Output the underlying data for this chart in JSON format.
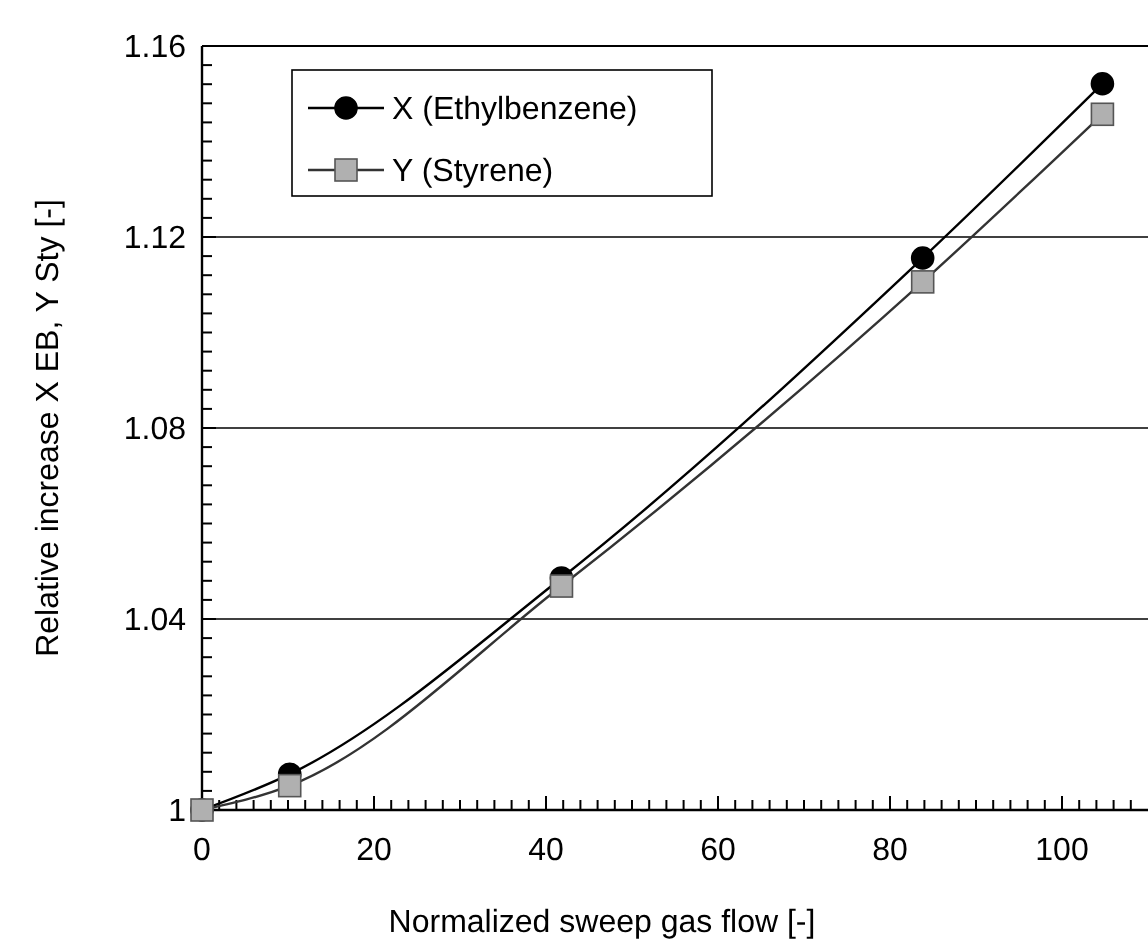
{
  "chart_data": {
    "type": "line",
    "xlabel": "Normalized sweep gas flow [-]",
    "ylabel": "Relative increase X EB, Y Sty [-]",
    "x": [
      0,
      10.2,
      41.8,
      83.8,
      104.7
    ],
    "series": [
      {
        "name": "X (Ethylbenzene)",
        "color": "#000000",
        "marker": "circle",
        "values": [
          1.0,
          1.0075,
          1.0486,
          1.1156,
          1.1521
        ]
      },
      {
        "name": "Y (Styrene)",
        "color": "#b0b0b0",
        "marker": "square",
        "values": [
          1.0,
          1.0051,
          1.0469,
          1.1106,
          1.1457
        ]
      }
    ],
    "xlim": [
      0,
      110
    ],
    "ylim": [
      1,
      1.16
    ],
    "xticks": [
      0,
      {
        "value": 2,
        "label": null
      },
      {
        "value": 4,
        "label": null
      },
      {
        "value": 6,
        "label": null
      },
      {
        "value": 8,
        "label": null
      },
      {
        "value": 10,
        "label": null
      },
      {
        "value": 12,
        "label": null
      },
      {
        "value": 14,
        "label": null
      },
      {
        "value": 16,
        "label": null
      },
      {
        "value": 18,
        "label": null
      },
      20,
      {
        "value": 22,
        "label": null
      },
      {
        "value": 24,
        "label": null
      },
      {
        "value": 26,
        "label": null
      },
      {
        "value": 28,
        "label": null
      },
      {
        "value": 30,
        "label": null
      },
      {
        "value": 32,
        "label": null
      },
      {
        "value": 34,
        "label": null
      },
      {
        "value": 36,
        "label": null
      },
      {
        "value": 38,
        "label": null
      },
      40,
      {
        "value": 42,
        "label": null
      },
      {
        "value": 44,
        "label": null
      },
      {
        "value": 46,
        "label": null
      },
      {
        "value": 48,
        "label": null
      },
      {
        "value": 50,
        "label": null
      },
      {
        "value": 52,
        "label": null
      },
      {
        "value": 54,
        "label": null
      },
      {
        "value": 56,
        "label": null
      },
      {
        "value": 58,
        "label": null
      },
      60,
      {
        "value": 62,
        "label": null
      },
      {
        "value": 64,
        "label": null
      },
      {
        "value": 66,
        "label": null
      },
      {
        "value": 68,
        "label": null
      },
      {
        "value": 70,
        "label": null
      },
      {
        "value": 72,
        "label": null
      },
      {
        "value": 74,
        "label": null
      },
      {
        "value": 76,
        "label": null
      },
      {
        "value": 78,
        "label": null
      },
      80,
      {
        "value": 82,
        "label": null
      },
      {
        "value": 84,
        "label": null
      },
      {
        "value": 86,
        "label": null
      },
      {
        "value": 88,
        "label": null
      },
      {
        "value": 90,
        "label": null
      },
      {
        "value": 92,
        "label": null
      },
      {
        "value": 94,
        "label": null
      },
      {
        "value": 96,
        "label": null
      },
      {
        "value": 98,
        "label": null
      },
      100,
      {
        "value": 102,
        "label": null
      },
      {
        "value": 104,
        "label": null
      },
      {
        "value": 106,
        "label": null
      },
      {
        "value": 108,
        "label": null
      }
    ],
    "yticks": [
      1,
      {
        "value": 1.004,
        "label": null
      },
      {
        "value": 1.008,
        "label": null
      },
      {
        "value": 1.012,
        "label": null
      },
      {
        "value": 1.016,
        "label": null
      },
      {
        "value": 1.02,
        "label": null
      },
      {
        "value": 1.024,
        "label": null
      },
      {
        "value": 1.028,
        "label": null
      },
      {
        "value": 1.032,
        "label": null
      },
      {
        "value": 1.036,
        "label": null
      },
      1.04,
      {
        "value": 1.044,
        "label": null
      },
      {
        "value": 1.048,
        "label": null
      },
      {
        "value": 1.052,
        "label": null
      },
      {
        "value": 1.056,
        "label": null
      },
      {
        "value": 1.06,
        "label": null
      },
      {
        "value": 1.064,
        "label": null
      },
      {
        "value": 1.068,
        "label": null
      },
      {
        "value": 1.072,
        "label": null
      },
      {
        "value": 1.076,
        "label": null
      },
      1.08,
      {
        "value": 1.084,
        "label": null
      },
      {
        "value": 1.088,
        "label": null
      },
      {
        "value": 1.092,
        "label": null
      },
      {
        "value": 1.096,
        "label": null
      },
      {
        "value": 1.1,
        "label": null
      },
      {
        "value": 1.104,
        "label": null
      },
      {
        "value": 1.108,
        "label": null
      },
      {
        "value": 1.112,
        "label": null
      },
      {
        "value": 1.116,
        "label": null
      },
      1.12,
      {
        "value": 1.124,
        "label": null
      },
      {
        "value": 1.128,
        "label": null
      },
      {
        "value": 1.132,
        "label": null
      },
      {
        "value": 1.136,
        "label": null
      },
      {
        "value": 1.14,
        "label": null
      },
      {
        "value": 1.144,
        "label": null
      },
      {
        "value": 1.148,
        "label": null
      },
      {
        "value": 1.152,
        "label": null
      },
      {
        "value": 1.156,
        "label": null
      },
      1.16
    ],
    "grid": "y",
    "legend": "top left",
    "line_style": "solid"
  }
}
